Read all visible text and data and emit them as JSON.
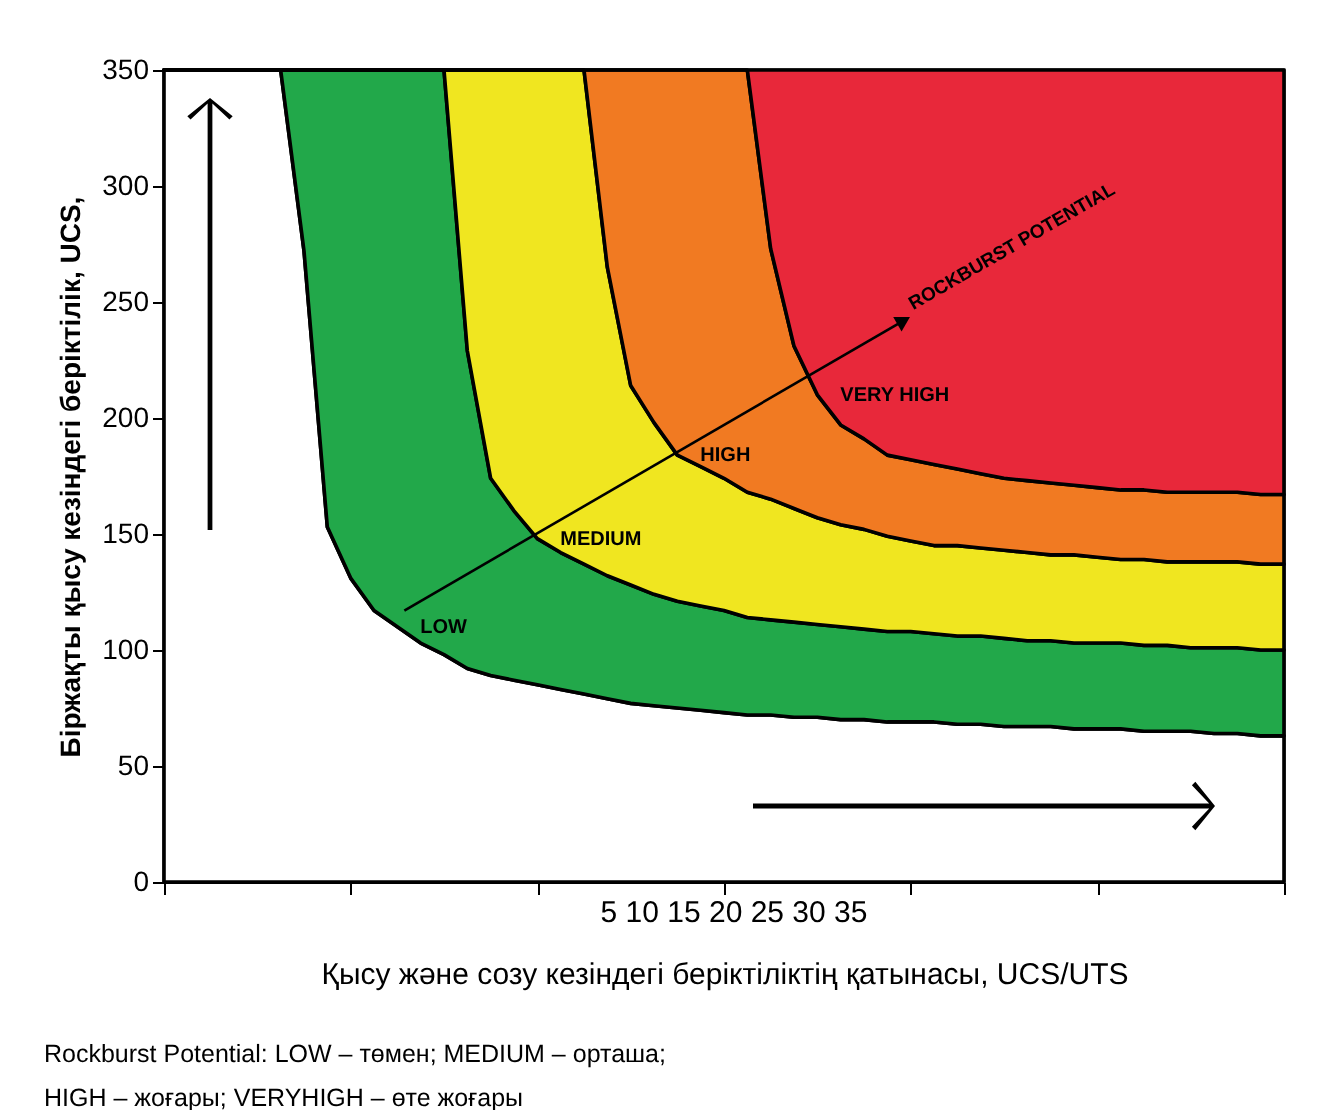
{
  "chart_data": {
    "type": "area",
    "stacked": true,
    "xlabel": "Қысу және созу кезіндегі беріктіліктің қатынасы, UCS/UTS",
    "ylabel": "Біржақты қысу кезіндегі беріктілік, UCS,",
    "categories": [
      null,
      null,
      null,
      null,
      null,
      null,
      null,
      null,
      null,
      null,
      null,
      null,
      null,
      null,
      null,
      null,
      null,
      null,
      null,
      null,
      null,
      null,
      null,
      null,
      null,
      null,
      null,
      null,
      null,
      null,
      null,
      null,
      null,
      null,
      null,
      null,
      null,
      null,
      null,
      null,
      null,
      null,
      null,
      null,
      null,
      null,
      null,
      null,
      null
    ],
    "ylim": [
      0,
      350
    ],
    "yticks": [
      0,
      50,
      100,
      150,
      200,
      250,
      300,
      350
    ],
    "tick_labels": "y",
    "series": [
      {
        "color": "#ffffff",
        "values": [
          350,
          350,
          350,
          350,
          350,
          350,
          272,
          153,
          131,
          117,
          110,
          103,
          98,
          92,
          89,
          87,
          85,
          83,
          81,
          79,
          77,
          76,
          75,
          74,
          73,
          72,
          72,
          71,
          71,
          70,
          70,
          69,
          69,
          69,
          68,
          68,
          67,
          67,
          67,
          66,
          66,
          66,
          65,
          65,
          65,
          64,
          64,
          63,
          63
        ]
      },
      {
        "name": "LOW",
        "color": "#22a84a",
        "values": [
          0,
          0,
          0,
          0,
          0,
          0,
          78,
          197,
          219,
          233,
          240,
          247,
          252,
          137,
          85,
          73,
          63,
          59,
          56,
          53,
          51,
          48,
          46,
          45,
          44,
          42,
          41,
          41,
          40,
          40,
          39,
          39,
          39,
          38,
          38,
          38,
          38,
          37,
          37,
          37,
          37,
          37,
          37,
          37,
          36,
          37,
          37,
          37,
          37
        ]
      },
      {
        "name": "MEDIUM",
        "color": "#f0e620",
        "values": [
          0,
          0,
          0,
          0,
          0,
          0,
          0,
          0,
          0,
          0,
          0,
          0,
          0,
          121,
          176,
          190,
          202,
          208,
          213,
          133,
          86,
          74,
          63,
          60,
          57,
          54,
          52,
          49,
          46,
          44,
          43,
          41,
          39,
          38,
          39,
          38,
          38,
          38,
          37,
          38,
          37,
          36,
          37,
          36,
          37,
          37,
          37,
          37,
          37
        ]
      },
      {
        "name": "HIGH",
        "color": "#f17a22",
        "values": [
          0,
          0,
          0,
          0,
          0,
          0,
          0,
          0,
          0,
          0,
          0,
          0,
          0,
          0,
          0,
          0,
          0,
          0,
          0,
          85,
          136,
          152,
          166,
          171,
          176,
          182,
          108,
          70,
          53,
          43,
          39,
          35,
          35,
          35,
          33,
          32,
          31,
          31,
          31,
          30,
          30,
          30,
          30,
          30,
          30,
          30,
          30,
          30,
          30
        ]
      },
      {
        "name": "VERY HIGH",
        "color": "#e8283a",
        "values": [
          0,
          0,
          0,
          0,
          0,
          0,
          0,
          0,
          0,
          0,
          0,
          0,
          0,
          0,
          0,
          0,
          0,
          0,
          0,
          0,
          0,
          0,
          0,
          0,
          0,
          0,
          77,
          119,
          140,
          153,
          159,
          166,
          168,
          170,
          172,
          174,
          176,
          177,
          178,
          179,
          180,
          181,
          181,
          182,
          182,
          182,
          182,
          183,
          183
        ]
      }
    ],
    "annotations": [
      "ROCKBURST POTENTIAL",
      "5 10 15 20 25 30 35",
      "Rockburst Potential: LOW – төмен; MEDIUM – орташа;",
      "HIGH – жоғары; VERYHIGH – өте жоғары"
    ]
  }
}
